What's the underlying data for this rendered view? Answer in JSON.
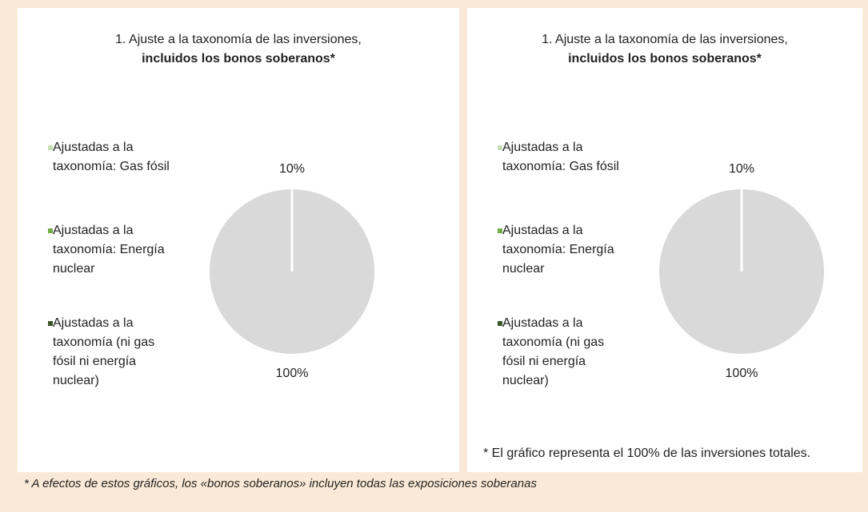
{
  "chart_data": [
    {
      "type": "pie",
      "title": "1. Ajuste a la taxonomía de las inversiones,",
      "subtitle": "incluidos los bonos soberanos*",
      "categories": [
        "Ajustadas a la taxonomía: Gas fósil",
        "Ajustadas a la taxonomía: Energía nuclear",
        "Ajustadas a la taxonomía (ni gas fósil ni energía nuclear)",
        null
      ],
      "values": [
        0,
        0,
        0,
        100
      ],
      "value_labels": [
        null,
        null,
        null,
        "100%"
      ],
      "colors": [
        "#c5e0b4",
        "#70ad47",
        "#375623",
        "#d9d9d9"
      ],
      "annotation": "10%"
    },
    {
      "type": "pie",
      "title": "1. Ajuste a la taxonomía de las inversiones,",
      "subtitle": "incluidos los bonos soberanos*",
      "categories": [
        "Ajustadas a la taxonomía: Gas fósil",
        "Ajustadas a la taxonomía: Energía nuclear",
        "Ajustadas a la taxonomía (ni gas fósil ni energía nuclear)",
        null
      ],
      "values": [
        0,
        0,
        0,
        100
      ],
      "value_labels": [
        null,
        null,
        null,
        "100%"
      ],
      "colors": [
        "#c5e0b4",
        "#70ad47",
        "#375623",
        "#d9d9d9"
      ],
      "annotation": "10%",
      "note": "* El gráfico representa el 100% de las inversiones totales."
    }
  ],
  "footnote": "* A efectos de estos gráficos, los «bonos soberanos» incluyen todas las exposiciones soberanas"
}
